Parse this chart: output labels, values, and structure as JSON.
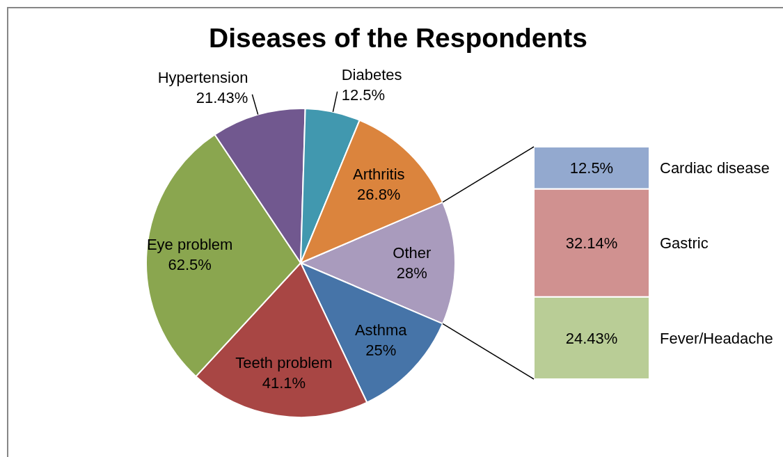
{
  "chart_data": [
    {
      "type": "pie",
      "title": "Diseases of the Respondents",
      "categories": [
        "Other",
        "Asthma",
        "Teeth problem",
        "Eye problem",
        "Hypertension",
        "Diabetes",
        "Arthritis"
      ],
      "values": [
        28,
        25,
        41.1,
        62.5,
        21.43,
        12.5,
        26.8
      ],
      "value_labels": [
        "28%",
        "25%",
        "41.1%",
        "62.5%",
        "21.43%",
        "12.5%",
        "26.8%"
      ],
      "colors": [
        "#a99bbd",
        "#4674a8",
        "#a84644",
        "#8aa64f",
        "#71588f",
        "#4198af",
        "#db843d"
      ]
    },
    {
      "type": "bar",
      "stacked": true,
      "categories": [
        null
      ],
      "series": [
        {
          "name": "Fever/Headache",
          "color": "#b9cd96",
          "values": [
            24.43
          ],
          "value_labels": [
            "24.43%"
          ]
        },
        {
          "name": "Gastric",
          "color": "#d09190",
          "values": [
            32.14
          ],
          "value_labels": [
            "32.14%"
          ]
        },
        {
          "name": "Cardiac disease",
          "color": "#93a9cf",
          "values": [
            12.5
          ],
          "value_labels": [
            "12.5%"
          ]
        }
      ]
    }
  ]
}
